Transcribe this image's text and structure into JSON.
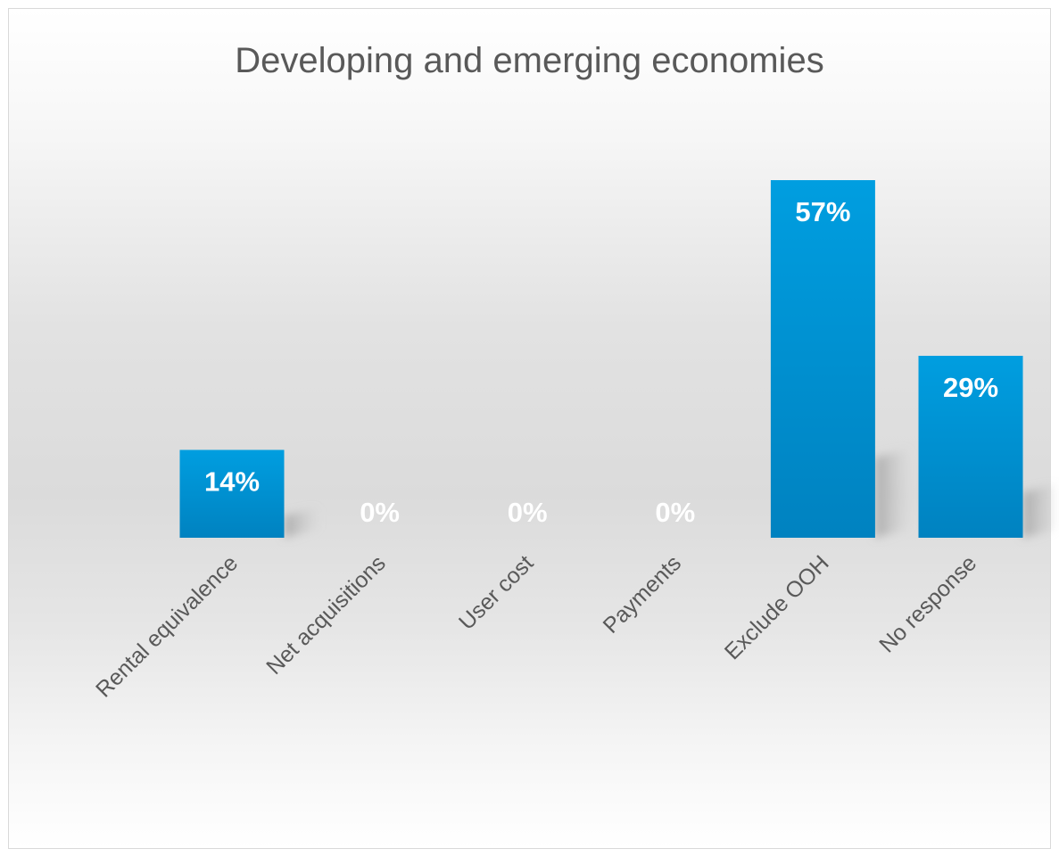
{
  "chart_data": {
    "type": "bar",
    "title": "Developing and emerging economies",
    "categories": [
      "Rental equivalence",
      "Net acquisitions",
      "User cost",
      "Payments",
      "Exclude OOH",
      "No response"
    ],
    "values": [
      14,
      0,
      0,
      0,
      57,
      29
    ],
    "data_labels": [
      "14%",
      "0%",
      "0%",
      "0%",
      "57%",
      "29%"
    ],
    "unit": "%",
    "ylim": [
      0,
      70
    ],
    "grid": false,
    "legend": "none",
    "bar_color": "#0096d6",
    "xlabel": "",
    "ylabel": ""
  }
}
